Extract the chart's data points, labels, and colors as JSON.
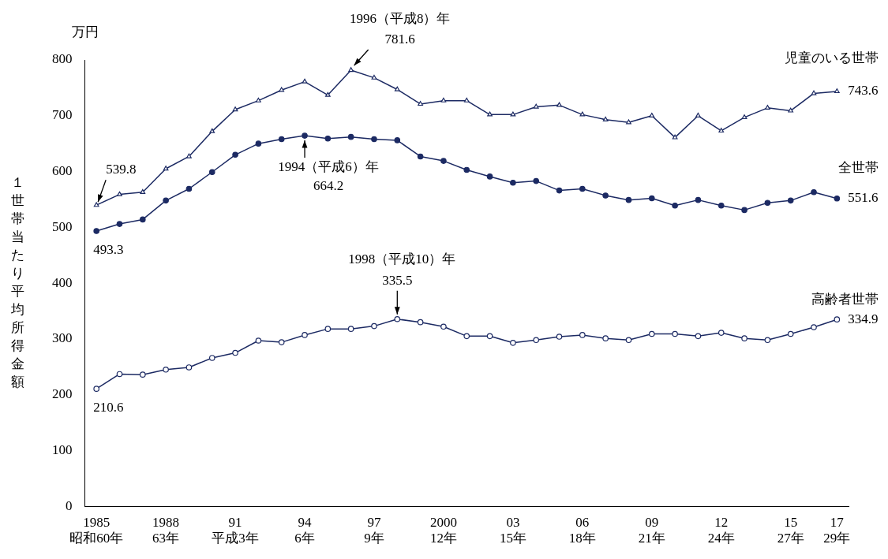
{
  "chart_data": {
    "type": "line",
    "ylabel": "１世帯当たり平均所得金額",
    "categories": [
      "1985\n昭和60年",
      null,
      null,
      "1988\n63年",
      null,
      null,
      "91\n平成3年",
      null,
      null,
      "94\n6年",
      null,
      null,
      "97\n9年",
      null,
      null,
      "2000\n12年",
      null,
      null,
      "03\n15年",
      null,
      null,
      "06\n18年",
      null,
      null,
      "09\n21年",
      null,
      null,
      "12\n24年",
      null,
      null,
      "15\n27年",
      null,
      "17\n29年"
    ],
    "ylim": [
      0,
      800
    ],
    "yticks": [
      0,
      100,
      200,
      300,
      400,
      500,
      600,
      700,
      800
    ],
    "grid": false,
    "legend": false,
    "line_style": "solid",
    "series": [
      {
        "name": "児童のいる世帯",
        "color": "#1c2a63",
        "marker": "triangle",
        "values": [
          539.8,
          559,
          563,
          605,
          627,
          672,
          711,
          727,
          746,
          761,
          737,
          781.6,
          768,
          747,
          721,
          727,
          727,
          702,
          702,
          716,
          719,
          702,
          693,
          688,
          700,
          661,
          700,
          673,
          697,
          714,
          709,
          740,
          743.6
        ],
        "value_labels": [
          "539.8",
          null,
          null,
          null,
          null,
          null,
          null,
          null,
          null,
          null,
          null,
          "781.6",
          null,
          null,
          null,
          null,
          null,
          null,
          null,
          null,
          null,
          null,
          null,
          null,
          null,
          null,
          null,
          null,
          null,
          null,
          null,
          null,
          "743.6"
        ]
      },
      {
        "name": "全世帯",
        "color": "#1c2a63",
        "marker": "circle",
        "values": [
          493.3,
          506,
          514,
          548,
          569,
          599,
          630,
          650,
          658,
          664.2,
          659,
          662,
          658,
          656,
          627,
          619,
          603,
          591,
          580,
          583,
          566,
          569,
          557,
          549,
          552,
          539,
          549,
          539,
          531,
          544,
          548,
          563,
          551.6
        ],
        "value_labels": [
          "493.3",
          null,
          null,
          null,
          null,
          null,
          null,
          null,
          null,
          "664.2",
          null,
          null,
          null,
          null,
          null,
          null,
          null,
          null,
          null,
          null,
          null,
          null,
          null,
          null,
          null,
          null,
          null,
          null,
          null,
          null,
          null,
          null,
          "551.6"
        ]
      },
      {
        "name": "高齢者世帯",
        "color": "#1c2a63",
        "marker": "circle",
        "values": [
          210.6,
          237,
          236,
          245,
          249,
          266,
          275,
          297,
          294,
          307,
          318,
          318,
          323,
          335.5,
          330,
          322,
          305,
          305,
          293,
          298,
          304,
          307,
          301,
          298,
          309,
          309,
          305,
          311,
          301,
          298,
          309,
          321,
          334.9
        ],
        "value_labels": [
          "210.6",
          null,
          null,
          null,
          null,
          null,
          null,
          null,
          null,
          null,
          null,
          null,
          null,
          "335.5",
          null,
          null,
          null,
          null,
          null,
          null,
          null,
          null,
          null,
          null,
          null,
          null,
          null,
          null,
          null,
          null,
          null,
          null,
          "334.9"
        ]
      }
    ],
    "annotations": [
      "万円",
      "1996（平成8）年",
      {
        "text": "1994（平成6）年",
        "x": "94\n6年",
        "y": 664.2
      },
      "1998（平成10）年"
    ]
  }
}
